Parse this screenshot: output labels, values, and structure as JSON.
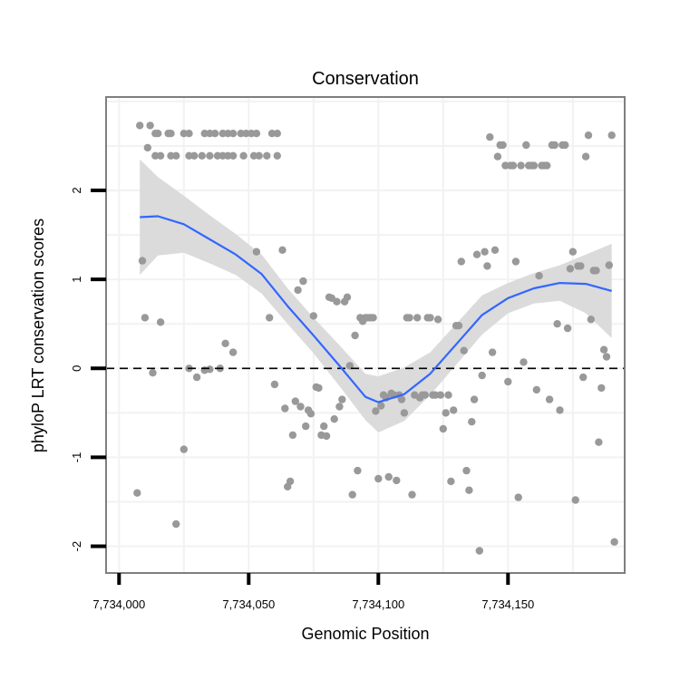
{
  "chart_data": {
    "type": "scatter",
    "title": "Conservation",
    "xlabel": "Genomic Position",
    "ylabel": "phyloP LRT conservation scores",
    "xlim": [
      7733995,
      7734195
    ],
    "ylim": [
      -2.3,
      3.05
    ],
    "x_ticks": [
      7734000,
      7734050,
      7734100,
      7734150
    ],
    "x_tick_labels": [
      "7,734,000",
      "7,734,050",
      "7,734,100",
      "7,734,150"
    ],
    "y_ticks": [
      -2,
      -1,
      0,
      1,
      2
    ],
    "y_tick_labels": [
      "-2",
      "-1",
      "0",
      "1",
      "2"
    ],
    "reference_line": {
      "y": 0,
      "style": "dashed",
      "color": "#000000"
    },
    "colors": {
      "points": "#999999",
      "smooth": "#3366ff",
      "ribbon": "#d9d9d9",
      "border": "#7f7f7f",
      "grid": "#f2f2f2"
    },
    "points": [
      [
        7734008,
        2.73
      ],
      [
        7734012,
        2.73
      ],
      [
        7734014,
        2.64
      ],
      [
        7734015,
        2.64
      ],
      [
        7734011,
        2.48
      ],
      [
        7734014,
        2.39
      ],
      [
        7734016,
        2.39
      ],
      [
        7734020,
        2.39
      ],
      [
        7734022,
        2.39
      ],
      [
        7734019,
        2.64
      ],
      [
        7734020,
        2.64
      ],
      [
        7734025,
        2.64
      ],
      [
        7734027,
        2.64
      ],
      [
        7734033,
        2.64
      ],
      [
        7734035,
        2.64
      ],
      [
        7734037,
        2.64
      ],
      [
        7734040,
        2.64
      ],
      [
        7734042,
        2.64
      ],
      [
        7734044,
        2.64
      ],
      [
        7734047,
        2.64
      ],
      [
        7734049,
        2.64
      ],
      [
        7734051,
        2.64
      ],
      [
        7734053,
        2.64
      ],
      [
        7734059,
        2.64
      ],
      [
        7734061,
        2.64
      ],
      [
        7734027,
        2.39
      ],
      [
        7734029,
        2.39
      ],
      [
        7734032,
        2.39
      ],
      [
        7734035,
        2.39
      ],
      [
        7734038,
        2.39
      ],
      [
        7734040,
        2.39
      ],
      [
        7734042,
        2.39
      ],
      [
        7734044,
        2.39
      ],
      [
        7734048,
        2.39
      ],
      [
        7734052,
        2.39
      ],
      [
        7734054,
        2.39
      ],
      [
        7734057,
        2.39
      ],
      [
        7734061,
        2.39
      ],
      [
        7734009,
        1.21
      ],
      [
        7734010,
        0.57
      ],
      [
        7734016,
        0.52
      ],
      [
        7734007,
        -1.4
      ],
      [
        7734013,
        -0.05
      ],
      [
        7734022,
        -1.75
      ],
      [
        7734025,
        -0.91
      ],
      [
        7734027,
        0.0
      ],
      [
        7734030,
        -0.1
      ],
      [
        7734033,
        -0.02
      ],
      [
        7734035,
        -0.01
      ],
      [
        7734039,
        0.0
      ],
      [
        7734041,
        0.28
      ],
      [
        7734044,
        0.18
      ],
      [
        7734053,
        1.31
      ],
      [
        7734058,
        0.57
      ],
      [
        7734060,
        -0.18
      ],
      [
        7734063,
        1.33
      ],
      [
        7734064,
        -0.45
      ],
      [
        7734065,
        -1.33
      ],
      [
        7734066,
        -1.27
      ],
      [
        7734067,
        -0.75
      ],
      [
        7734068,
        -0.37
      ],
      [
        7734069,
        0.88
      ],
      [
        7734070,
        -0.43
      ],
      [
        7734071,
        0.98
      ],
      [
        7734072,
        -0.65
      ],
      [
        7734073,
        -0.47
      ],
      [
        7734074,
        -0.51
      ],
      [
        7734075,
        0.59
      ],
      [
        7734076,
        -0.21
      ],
      [
        7734077,
        -0.22
      ],
      [
        7734078,
        -0.75
      ],
      [
        7734079,
        -0.65
      ],
      [
        7734080,
        -0.76
      ],
      [
        7734081,
        0.8
      ],
      [
        7734082,
        0.79
      ],
      [
        7734083,
        -0.57
      ],
      [
        7734084,
        0.75
      ],
      [
        7734085,
        -0.43
      ],
      [
        7734086,
        -0.35
      ],
      [
        7734087,
        0.75
      ],
      [
        7734088,
        0.8
      ],
      [
        7734089,
        0.03
      ],
      [
        7734090,
        -1.42
      ],
      [
        7734091,
        0.37
      ],
      [
        7734092,
        -1.15
      ],
      [
        7734093,
        0.57
      ],
      [
        7734094,
        0.53
      ],
      [
        7734095,
        0.57
      ],
      [
        7734096,
        0.57
      ],
      [
        7734097,
        0.57
      ],
      [
        7734098,
        0.57
      ],
      [
        7734099,
        -0.48
      ],
      [
        7734100,
        -1.24
      ],
      [
        7734101,
        -0.42
      ],
      [
        7734102,
        -0.3
      ],
      [
        7734103,
        -0.33
      ],
      [
        7734104,
        -1.22
      ],
      [
        7734105,
        -0.28
      ],
      [
        7734106,
        -0.3
      ],
      [
        7734107,
        -1.26
      ],
      [
        7734108,
        -0.3
      ],
      [
        7734109,
        -0.35
      ],
      [
        7734110,
        -0.5
      ],
      [
        7734111,
        0.57
      ],
      [
        7734112,
        0.57
      ],
      [
        7734113,
        -1.42
      ],
      [
        7734114,
        -0.3
      ],
      [
        7734115,
        0.57
      ],
      [
        7734116,
        -0.33
      ],
      [
        7734117,
        -0.3
      ],
      [
        7734118,
        -0.3
      ],
      [
        7734119,
        0.57
      ],
      [
        7734120,
        0.57
      ],
      [
        7734121,
        -0.3
      ],
      [
        7734122,
        -0.3
      ],
      [
        7734123,
        0.55
      ],
      [
        7734124,
        -0.3
      ],
      [
        7734125,
        -0.68
      ],
      [
        7734126,
        -0.5
      ],
      [
        7734127,
        -0.3
      ],
      [
        7734128,
        -1.27
      ],
      [
        7734129,
        -0.47
      ],
      [
        7734130,
        0.48
      ],
      [
        7734131,
        0.48
      ],
      [
        7734132,
        1.2
      ],
      [
        7734133,
        0.2
      ],
      [
        7734134,
        -1.15
      ],
      [
        7734135,
        -1.37
      ],
      [
        7734136,
        -0.6
      ],
      [
        7734137,
        -0.35
      ],
      [
        7734138,
        1.28
      ],
      [
        7734139,
        -2.05
      ],
      [
        7734140,
        -0.08
      ],
      [
        7734141,
        1.31
      ],
      [
        7734142,
        1.15
      ],
      [
        7734143,
        2.6
      ],
      [
        7734144,
        0.18
      ],
      [
        7734145,
        1.33
      ],
      [
        7734146,
        2.38
      ],
      [
        7734147,
        2.51
      ],
      [
        7734148,
        2.51
      ],
      [
        7734149,
        2.28
      ],
      [
        7734150,
        -0.15
      ],
      [
        7734151,
        2.28
      ],
      [
        7734152,
        2.28
      ],
      [
        7734153,
        1.2
      ],
      [
        7734154,
        -1.45
      ],
      [
        7734155,
        2.28
      ],
      [
        7734156,
        0.07
      ],
      [
        7734157,
        2.51
      ],
      [
        7734158,
        2.28
      ],
      [
        7734159,
        2.28
      ],
      [
        7734160,
        2.28
      ],
      [
        7734161,
        -0.24
      ],
      [
        7734162,
        1.04
      ],
      [
        7734163,
        2.28
      ],
      [
        7734164,
        2.28
      ],
      [
        7734165,
        2.28
      ],
      [
        7734166,
        -0.35
      ],
      [
        7734167,
        2.51
      ],
      [
        7734168,
        2.51
      ],
      [
        7734169,
        0.5
      ],
      [
        7734170,
        -0.47
      ],
      [
        7734171,
        2.51
      ],
      [
        7734172,
        2.51
      ],
      [
        7734173,
        0.45
      ],
      [
        7734174,
        1.12
      ],
      [
        7734175,
        1.31
      ],
      [
        7734176,
        -1.48
      ],
      [
        7734177,
        1.15
      ],
      [
        7734178,
        1.15
      ],
      [
        7734179,
        -0.1
      ],
      [
        7734180,
        2.38
      ],
      [
        7734181,
        2.62
      ],
      [
        7734182,
        0.55
      ],
      [
        7734183,
        1.1
      ],
      [
        7734184,
        1.1
      ],
      [
        7734185,
        -0.83
      ],
      [
        7734186,
        -0.22
      ],
      [
        7734187,
        0.21
      ],
      [
        7734188,
        0.13
      ],
      [
        7734189,
        1.16
      ],
      [
        7734190,
        2.62
      ],
      [
        7734191,
        -1.95
      ]
    ],
    "smooth": {
      "x": [
        7734008,
        7734015,
        7734025,
        7734035,
        7734045,
        7734055,
        7734065,
        7734075,
        7734085,
        7734095,
        7734100,
        7734110,
        7734120,
        7734130,
        7734140,
        7734150,
        7734160,
        7734170,
        7734180,
        7734190
      ],
      "y": [
        1.7,
        1.71,
        1.62,
        1.45,
        1.28,
        1.06,
        0.7,
        0.37,
        0.03,
        -0.32,
        -0.38,
        -0.29,
        -0.06,
        0.27,
        0.6,
        0.79,
        0.9,
        0.96,
        0.95,
        0.87
      ],
      "ymin": [
        1.05,
        1.27,
        1.3,
        1.18,
        1.05,
        0.84,
        0.5,
        0.17,
        -0.2,
        -0.58,
        -0.72,
        -0.59,
        -0.3,
        0.04,
        0.38,
        0.62,
        0.73,
        0.76,
        0.62,
        0.34
      ],
      "ymax": [
        2.35,
        2.15,
        1.94,
        1.72,
        1.51,
        1.28,
        0.9,
        0.57,
        0.26,
        -0.06,
        -0.09,
        0.01,
        0.18,
        0.5,
        0.82,
        0.96,
        1.07,
        1.16,
        1.28,
        1.4
      ]
    }
  }
}
